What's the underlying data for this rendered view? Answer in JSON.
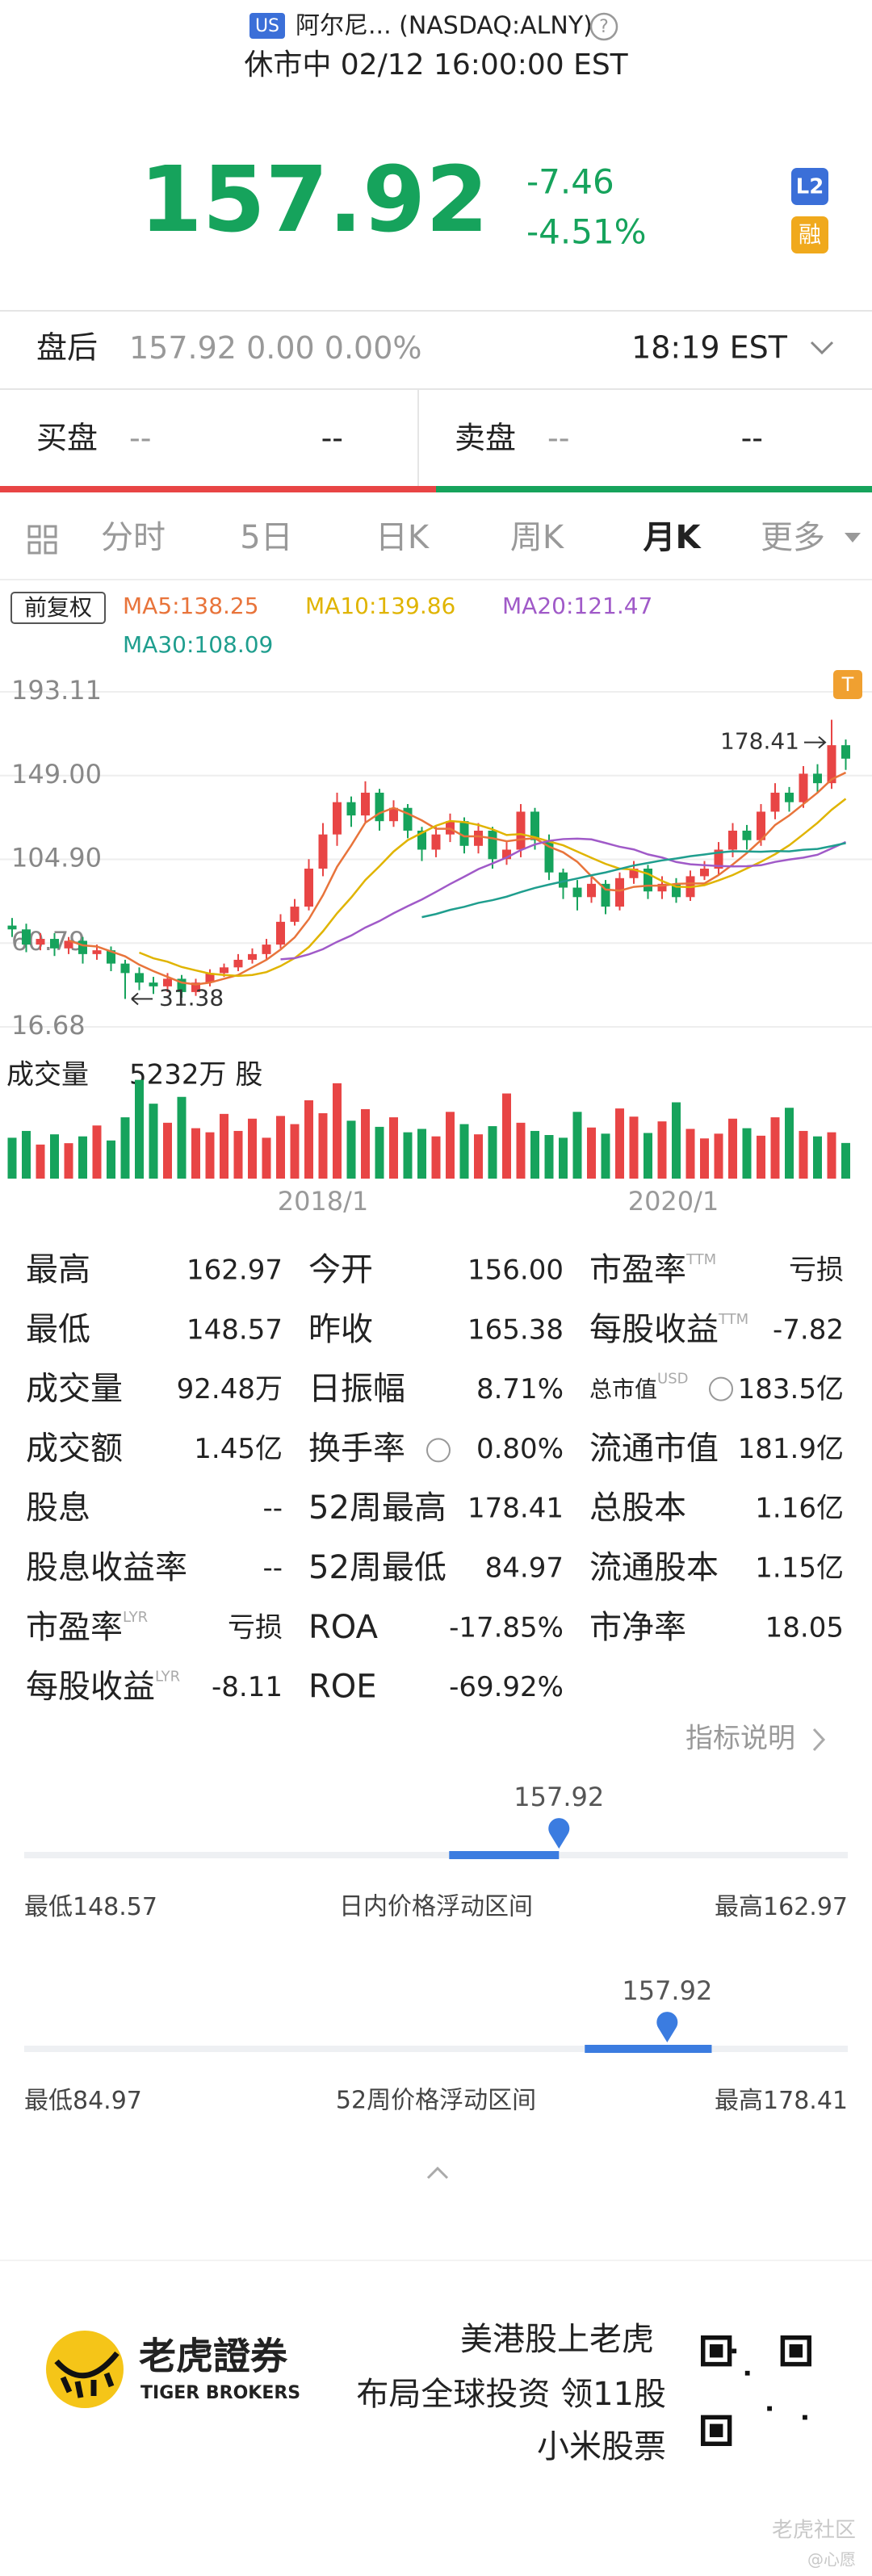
{
  "header": {
    "market_badge": "US",
    "name": "阿尔尼... (NASDAQ:ALNY)",
    "status": "休市中 02/12 16:00:00 EST",
    "price": "157.92",
    "change": "-7.46",
    "change_pct": "-4.51%",
    "badge_l2": "L2",
    "badge_margin": "融"
  },
  "after_hours": {
    "label": "盘后",
    "price": "157.92",
    "change": "0.00",
    "change_pct": "0.00%",
    "time": "18:19 EST"
  },
  "order_book": {
    "bid_label": "买盘",
    "bid_price": "--",
    "bid_size": "--",
    "ask_label": "卖盘",
    "ask_price": "--",
    "ask_size": "--"
  },
  "tabs": {
    "items": [
      "分时",
      "5日",
      "日K",
      "周K",
      "月K",
      "更多"
    ],
    "active": 4
  },
  "legend": {
    "adjust": "前复权",
    "ma5": "MA5:138.25",
    "ma10": "MA10:139.86",
    "ma20": "MA20:121.47",
    "ma30": "MA30:108.09"
  },
  "chart_data": {
    "type": "candlestick",
    "up_color": "#e84545",
    "down_color": "#16a35c",
    "ylim": [
      16.68,
      193.11
    ],
    "yticks": [
      193.11,
      {
        "value": 149,
        "label": "149.00"
      },
      {
        "value": 104.9,
        "label": "104.90"
      },
      60.79,
      16.68
    ],
    "high_note": "178.41",
    "low_note": "31.38",
    "open": [
      70,
      68,
      60,
      63,
      58,
      62,
      55,
      57,
      50,
      45,
      40,
      38,
      42,
      35,
      40,
      45,
      48,
      52,
      55,
      60,
      72,
      80,
      100,
      118,
      135,
      128,
      140,
      125,
      132,
      120,
      110,
      118,
      125,
      112,
      120,
      105,
      110,
      130,
      115,
      98,
      90,
      85,
      92,
      80,
      95,
      100,
      88,
      92,
      85,
      96,
      100,
      110,
      120,
      115,
      130,
      140,
      135,
      150,
      145,
      165
    ],
    "high": [
      74,
      71,
      66,
      66,
      64,
      64,
      60,
      59,
      52,
      48,
      43,
      45,
      44,
      42,
      47,
      50,
      55,
      58,
      63,
      76,
      84,
      105,
      124,
      140,
      138,
      146,
      142,
      136,
      134,
      122,
      122,
      129,
      127,
      124,
      122,
      114,
      134,
      132,
      118,
      100,
      94,
      96,
      94,
      98,
      104,
      102,
      96,
      95,
      99,
      104,
      114,
      124,
      123,
      134,
      145,
      143,
      154,
      155,
      178.41,
      168
    ],
    "low": [
      64,
      56,
      57,
      54,
      55,
      50,
      52,
      46,
      31.38,
      36,
      34,
      35,
      32,
      33,
      38,
      43,
      46,
      50,
      52,
      58,
      70,
      78,
      96,
      112,
      122,
      124,
      120,
      122,
      116,
      104,
      106,
      114,
      108,
      108,
      100,
      102,
      106,
      110,
      94,
      84,
      78,
      82,
      76,
      78,
      92,
      84,
      84,
      82,
      83,
      94,
      97,
      106,
      110,
      112,
      126,
      130,
      132,
      140,
      142,
      152
    ],
    "close": [
      68,
      60,
      63,
      58,
      62,
      55,
      57,
      50,
      45,
      40,
      38,
      42,
      35,
      40,
      45,
      48,
      52,
      55,
      60,
      72,
      80,
      100,
      118,
      135,
      128,
      140,
      125,
      132,
      120,
      110,
      118,
      125,
      112,
      120,
      105,
      110,
      130,
      115,
      98,
      90,
      85,
      92,
      80,
      95,
      100,
      88,
      92,
      85,
      96,
      100,
      110,
      120,
      115,
      130,
      140,
      135,
      150,
      145,
      165,
      157.92
    ],
    "volume_label": "成交量",
    "volume_note": "5232万 股",
    "volume_ylim": [
      0,
      16000
    ],
    "volume": [
      6000,
      7000,
      5000,
      6500,
      5200,
      6200,
      7800,
      5600,
      9000,
      14500,
      11000,
      8200,
      12000,
      7400,
      6800,
      9500,
      7000,
      8800,
      6000,
      9200,
      8000,
      11500,
      9600,
      14000,
      8500,
      10200,
      7600,
      9000,
      6800,
      7300,
      6200,
      9800,
      8000,
      6500,
      7700,
      12500,
      8200,
      7000,
      6400,
      6000,
      9800,
      7500,
      6600,
      10300,
      9100,
      6700,
      8400,
      11200,
      7300,
      5900,
      6600,
      8800,
      7400,
      6300,
      9000,
      10400,
      7000,
      6200,
      6800,
      5232
    ],
    "xlabels": [
      "2018/1",
      "2020/1"
    ]
  },
  "stats": {
    "rows": [
      [
        {
          "label": "最高",
          "value": "162.97"
        },
        {
          "label": "今开",
          "value": "156.00"
        },
        {
          "label": "市盈率",
          "sup": "TTM",
          "value": "亏损"
        }
      ],
      [
        {
          "label": "最低",
          "value": "148.57"
        },
        {
          "label": "昨收",
          "value": "165.38"
        },
        {
          "label": "每股收益",
          "sup": "TTM",
          "value": "-7.82"
        }
      ],
      [
        {
          "label": "成交量",
          "value": "92.48万"
        },
        {
          "label": "日振幅",
          "value": "8.71%"
        },
        {
          "label": "总市值",
          "sup": "USD",
          "value": "183.5亿"
        }
      ],
      [
        {
          "label": "成交额",
          "value": "1.45亿"
        },
        {
          "label": "换手率",
          "value": "0.80%"
        },
        {
          "label": "流通市值",
          "value": "181.9亿"
        }
      ],
      [
        {
          "label": "股息",
          "value": "--"
        },
        {
          "label": "52周最高",
          "value": "178.41"
        },
        {
          "label": "总股本",
          "value": "1.16亿"
        }
      ],
      [
        {
          "label": "股息收益率",
          "value": "--"
        },
        {
          "label": "52周最低",
          "value": "84.97"
        },
        {
          "label": "流通股本",
          "value": "1.15亿"
        }
      ],
      [
        {
          "label": "市盈率",
          "sup": "LYR",
          "value": "亏损"
        },
        {
          "label": "ROA",
          "value": "-17.85%"
        },
        {
          "label": "市净率",
          "value": "18.05"
        }
      ],
      [
        {
          "label": "每股收益",
          "sup": "LYR",
          "value": "-8.11"
        },
        {
          "label": "ROE",
          "value": "-69.92%"
        }
      ]
    ],
    "explain": "指标说明"
  },
  "ranges": [
    {
      "current": 157.92,
      "low_label": "最低",
      "low": 148.57,
      "title": "日内价格浮动区间",
      "high_label": "最高",
      "high": 162.97,
      "band": [
        156.0,
        157.92
      ]
    },
    {
      "current": 157.92,
      "low_label": "最低",
      "low": 84.97,
      "title": "52周价格浮动区间",
      "high_label": "最高",
      "high": 178.41,
      "band": [
        148.57,
        162.97
      ]
    }
  ],
  "footer": {
    "brand": "老虎證券",
    "brand_en": "TIGER BROKERS",
    "line1": "美港股上老虎",
    "line2": "布局全球投资 领11股",
    "line3": "小米股票",
    "watermark": "老虎社区",
    "watermark_user": "@心愿"
  }
}
